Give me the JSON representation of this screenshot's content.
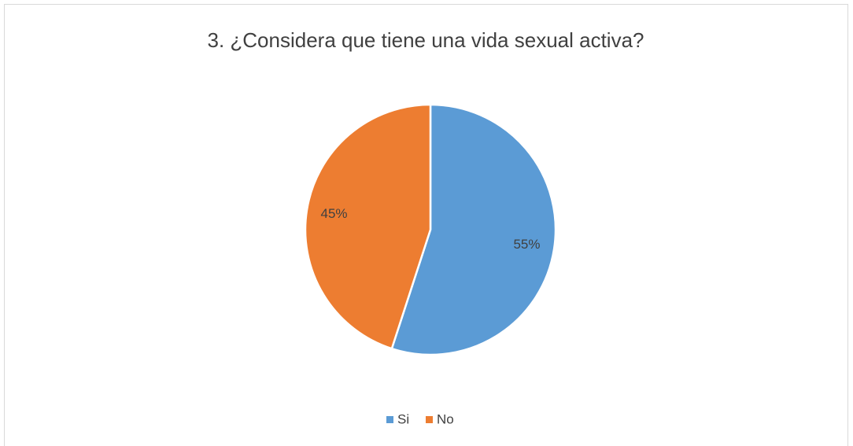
{
  "chart_data": {
    "type": "pie",
    "title": "3. ¿Considera que tiene una vida sexual activa?",
    "categories": [
      "Si",
      "No"
    ],
    "values": [
      55,
      45
    ],
    "value_labels": [
      "55%",
      "45%"
    ],
    "colors": [
      "#5b9bd5",
      "#ed7d31"
    ],
    "legend": "bottom"
  }
}
